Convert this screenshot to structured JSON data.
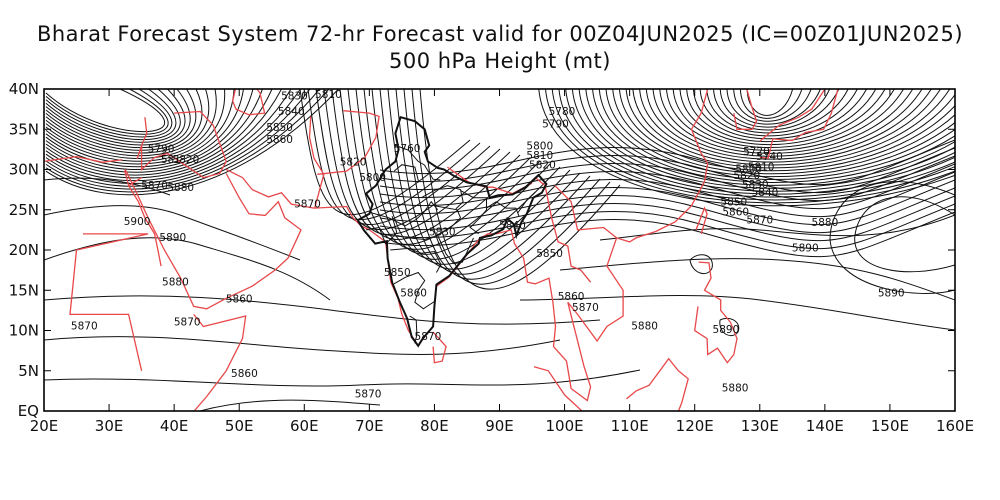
{
  "title": "Bharat Forecast System 72-hr Forecast valid for 00Z04JUN2025 (IC=00Z01JUN2025)",
  "subtitle": "500 hPa Height (mt)",
  "colors": {
    "contour": "#111111",
    "coast": "#e8484a",
    "india": "#111111",
    "frame": "#000000"
  },
  "map": {
    "lon_range": [
      20,
      160
    ],
    "lat_range": [
      0,
      40
    ],
    "x_ticks": [
      "20E",
      "30E",
      "40E",
      "50E",
      "60E",
      "70E",
      "80E",
      "90E",
      "100E",
      "110E",
      "120E",
      "130E",
      "140E",
      "150E",
      "160E"
    ],
    "y_ticks": [
      "EQ",
      "5N",
      "10N",
      "15N",
      "20N",
      "25N",
      "30N",
      "35N",
      "40N"
    ]
  },
  "contour_labels": [
    {
      "text": "5830",
      "lon": 58.5,
      "lat": 38.7
    },
    {
      "text": "5810",
      "lon": 63.7,
      "lat": 38.9
    },
    {
      "text": "5840",
      "lon": 58.0,
      "lat": 36.8
    },
    {
      "text": "5850",
      "lon": 56.2,
      "lat": 34.8
    },
    {
      "text": "5860",
      "lon": 56.2,
      "lat": 33.3
    },
    {
      "text": "5790",
      "lon": 38.0,
      "lat": 32.1
    },
    {
      "text": "581",
      "lon": 39.5,
      "lat": 30.8
    },
    {
      "text": "5820",
      "lon": 41.8,
      "lat": 30.8
    },
    {
      "text": "5870",
      "lon": 37.0,
      "lat": 27.6
    },
    {
      "text": "5880",
      "lon": 41.0,
      "lat": 27.3
    },
    {
      "text": "5820",
      "lon": 67.5,
      "lat": 30.5
    },
    {
      "text": "5800",
      "lon": 70.5,
      "lat": 28.6
    },
    {
      "text": "5760",
      "lon": 75.8,
      "lat": 32.2
    },
    {
      "text": "5870",
      "lon": 60.5,
      "lat": 25.3
    },
    {
      "text": "5900",
      "lon": 34.3,
      "lat": 23.1
    },
    {
      "text": "5890",
      "lon": 39.8,
      "lat": 21.1
    },
    {
      "text": "5880",
      "lon": 40.2,
      "lat": 15.6
    },
    {
      "text": "5860",
      "lon": 50.0,
      "lat": 13.5
    },
    {
      "text": "5870",
      "lon": 42.0,
      "lat": 10.6
    },
    {
      "text": "5870",
      "lon": 26.2,
      "lat": 10.1
    },
    {
      "text": "5860",
      "lon": 50.8,
      "lat": 4.2
    },
    {
      "text": "5870",
      "lon": 69.8,
      "lat": 1.7
    },
    {
      "text": "5830",
      "lon": 81.2,
      "lat": 21.8
    },
    {
      "text": "5850",
      "lon": 74.3,
      "lat": 16.8
    },
    {
      "text": "5860",
      "lon": 76.8,
      "lat": 14.2
    },
    {
      "text": "5870",
      "lon": 79.0,
      "lat": 8.8
    },
    {
      "text": "5840",
      "lon": 92.0,
      "lat": 22.6
    },
    {
      "text": "5850",
      "lon": 97.7,
      "lat": 19.1
    },
    {
      "text": "5860",
      "lon": 101.0,
      "lat": 13.8
    },
    {
      "text": "5870",
      "lon": 103.2,
      "lat": 12.4
    },
    {
      "text": "5880",
      "lon": 112.3,
      "lat": 10.1
    },
    {
      "text": "5780",
      "lon": 99.6,
      "lat": 36.8
    },
    {
      "text": "5790",
      "lon": 98.6,
      "lat": 35.2
    },
    {
      "text": "5800",
      "lon": 96.2,
      "lat": 32.5
    },
    {
      "text": "5810",
      "lon": 96.2,
      "lat": 31.3
    },
    {
      "text": "5820",
      "lon": 96.6,
      "lat": 30.1
    },
    {
      "text": "5890",
      "lon": 137.0,
      "lat": 19.8
    },
    {
      "text": "5880",
      "lon": 140.0,
      "lat": 23.0
    },
    {
      "text": "5870",
      "lon": 130.0,
      "lat": 23.3
    },
    {
      "text": "5860",
      "lon": 126.3,
      "lat": 24.3
    },
    {
      "text": "5850",
      "lon": 126.0,
      "lat": 25.5
    },
    {
      "text": "5840",
      "lon": 130.8,
      "lat": 26.7
    },
    {
      "text": "5830",
      "lon": 129.3,
      "lat": 27.7
    },
    {
      "text": "5820",
      "lon": 128.0,
      "lat": 28.8
    },
    {
      "text": "5810",
      "lon": 130.2,
      "lat": 29.9
    },
    {
      "text": "5800",
      "lon": 128.3,
      "lat": 29.6
    },
    {
      "text": "5890",
      "lon": 150.2,
      "lat": 14.2
    },
    {
      "text": "5890",
      "lon": 124.8,
      "lat": 9.7
    },
    {
      "text": "5880",
      "lon": 126.2,
      "lat": 2.4
    },
    {
      "text": "5720",
      "lon": 129.5,
      "lat": 31.8
    },
    {
      "text": "5740",
      "lon": 131.5,
      "lat": 31.2
    }
  ]
}
